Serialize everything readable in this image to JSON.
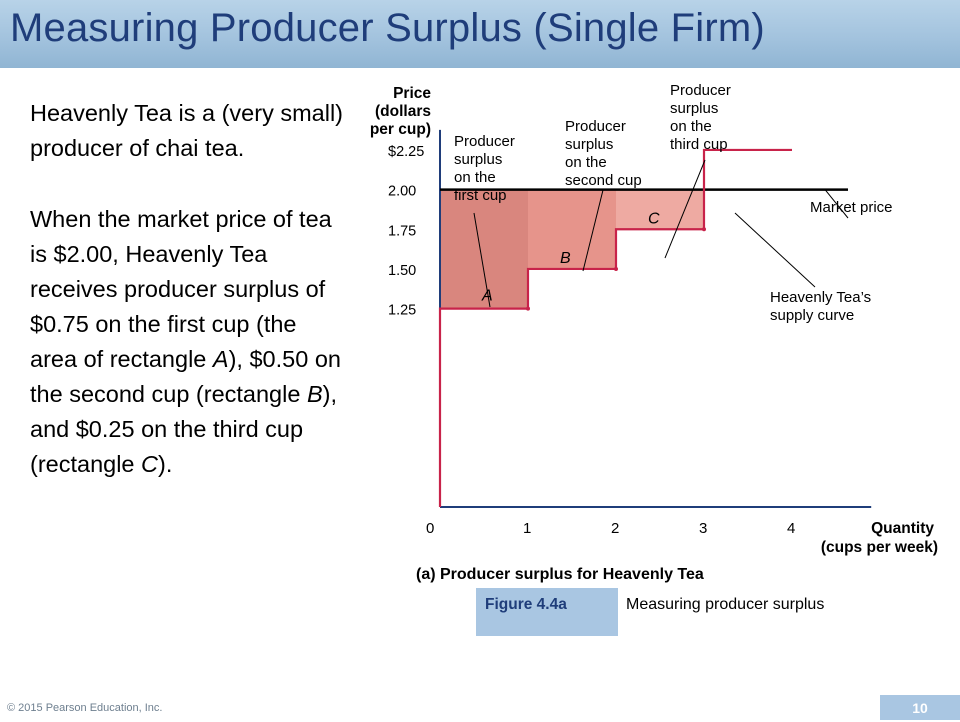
{
  "slide": {
    "title": "Measuring Producer Surplus (Single Firm)",
    "paragraph_1": "Heavenly Tea is a (very small) producer of chai tea.",
    "paragraph_2": {
      "s1": "When the market price of tea is $2.00, Heavenly Tea receives producer surplus of $0.75 on the first cup (the area of rectangle ",
      "r1": "A",
      "s2": "), $0.50 on the second cup (rectangle ",
      "r2": "B",
      "s3": "), and $0.25 on the third cup (rectangle ",
      "r3": "C",
      "s4": ")."
    },
    "copyright": "© 2015 Pearson Education, Inc.",
    "page_number": "10"
  },
  "figure": {
    "label": "Figure 4.4a",
    "description": "Measuring producer surplus"
  },
  "chart_data": {
    "type": "line",
    "title": "(a) Producer surplus for Heavenly Tea",
    "ylabel": [
      "Price",
      "(dollars",
      "per cup)"
    ],
    "xlabel": [
      "Quantity",
      "(cups per week)"
    ],
    "xlim": [
      0,
      4.9
    ],
    "ylim": [
      0,
      2.25
    ],
    "x_ticks": [
      {
        "value": 0,
        "label": "0"
      },
      {
        "value": 1,
        "label": "1"
      },
      {
        "value": 2,
        "label": "2"
      },
      {
        "value": 3,
        "label": "3"
      },
      {
        "value": 4,
        "label": "4"
      }
    ],
    "y_ticks": [
      {
        "value": 2.25,
        "label": "$2.25"
      },
      {
        "value": 2.0,
        "label": "2.00"
      },
      {
        "value": 1.75,
        "label": "1.75"
      },
      {
        "value": 1.5,
        "label": "1.50"
      },
      {
        "value": 1.25,
        "label": "1.25"
      }
    ],
    "market_price": 2.0,
    "supply_steps": [
      {
        "from": 0,
        "to": 1,
        "price": 1.25
      },
      {
        "from": 1,
        "to": 2,
        "price": 1.5
      },
      {
        "from": 2,
        "to": 3,
        "price": 1.75
      },
      {
        "from": 3,
        "to": 4,
        "price": 2.25
      }
    ],
    "surplus_rectangles": [
      {
        "label": "A",
        "x0": 0,
        "x1": 1,
        "price": 1.25,
        "surplus": 0.75,
        "color": "#d9867e"
      },
      {
        "label": "B",
        "x0": 1,
        "x1": 2,
        "price": 1.5,
        "surplus": 0.5,
        "color": "#e6948b"
      },
      {
        "label": "C",
        "x0": 2,
        "x1": 3,
        "price": 1.75,
        "surplus": 0.25,
        "color": "#eeaaa2"
      }
    ],
    "annotations": {
      "surplus_first": [
        "Producer",
        "surplus",
        "on the",
        "first cup"
      ],
      "surplus_second": [
        "Producer",
        "surplus",
        "on the",
        "second cup"
      ],
      "surplus_third": [
        "Producer",
        "surplus",
        "on the",
        "third cup"
      ],
      "market_price": "Market price",
      "supply_curve": [
        "Heavenly Tea’s",
        "supply curve"
      ]
    },
    "colors": {
      "supply": "#c8234a",
      "market": "#000000",
      "axis": "#1f3d7a"
    }
  }
}
